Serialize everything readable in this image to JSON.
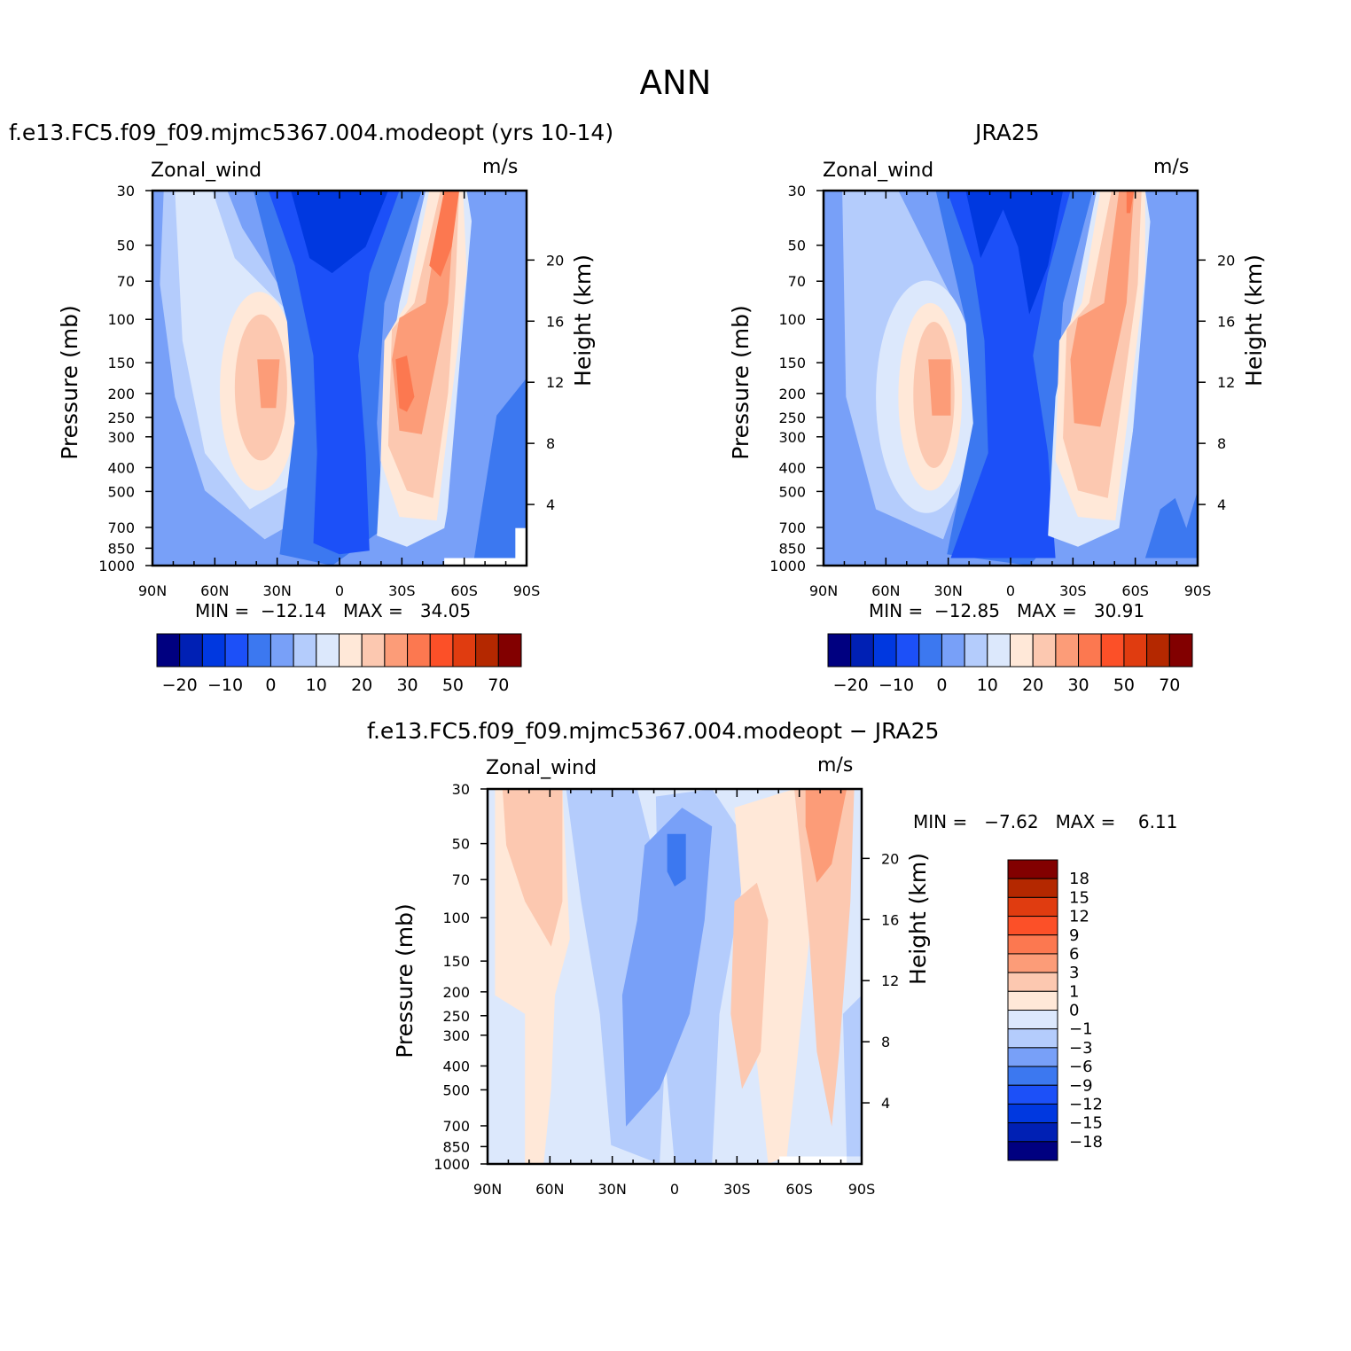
{
  "figure": {
    "title": "ANN"
  },
  "chart_data": [
    {
      "type": "heatmap",
      "id": "model",
      "title": "f.e13.FC5.f09_f09.mjmc5367.004.modeopt (yrs 10-14)",
      "variable": "Zonal_wind",
      "units": "m/s",
      "ylabel": "Pressure (mb)",
      "y2label": "Height (km)",
      "x_ticks": [
        "90N",
        "60N",
        "30N",
        "0",
        "30S",
        "60S",
        "90S"
      ],
      "x_values": [
        90,
        60,
        30,
        0,
        -30,
        -60,
        -90
      ],
      "y_ticks": [
        30,
        50,
        70,
        100,
        150,
        200,
        250,
        300,
        400,
        500,
        700,
        850,
        1000
      ],
      "y2_ticks": [
        20,
        16,
        12,
        8,
        4
      ],
      "ylim": [
        1000,
        30
      ],
      "log_y": true,
      "min_label": "MIN =  −12.14   MAX =   34.05",
      "min": -12.14,
      "max": 34.05,
      "colorbar": {
        "orientation": "horizontal",
        "labels": [
          "−20",
          "−10",
          "0",
          "10",
          "20",
          "30",
          "50",
          "70"
        ],
        "colors": [
          "#000080",
          "#0020b4",
          "#0038e0",
          "#1c50f8",
          "#3c78f0",
          "#78a0f8",
          "#b4ccfc",
          "#dce8fc",
          "#ffe8d8",
          "#fcc8b0",
          "#fc9c78",
          "#fc7850",
          "#fc5028",
          "#e03c10",
          "#b42800",
          "#820000"
        ]
      }
    },
    {
      "type": "heatmap",
      "id": "obs",
      "title": "JRA25",
      "variable": "Zonal_wind",
      "units": "m/s",
      "ylabel": "Pressure (mb)",
      "y2label": "Height (km)",
      "x_ticks": [
        "90N",
        "60N",
        "30N",
        "0",
        "30S",
        "60S",
        "90S"
      ],
      "x_values": [
        90,
        60,
        30,
        0,
        -30,
        -60,
        -90
      ],
      "y_ticks": [
        30,
        50,
        70,
        100,
        150,
        200,
        250,
        300,
        400,
        500,
        700,
        850,
        1000
      ],
      "y2_ticks": [
        20,
        16,
        12,
        8,
        4
      ],
      "ylim": [
        1000,
        30
      ],
      "log_y": true,
      "min_label": "MIN =  −12.85   MAX =   30.91",
      "min": -12.85,
      "max": 30.91,
      "colorbar": {
        "orientation": "horizontal",
        "labels": [
          "−20",
          "−10",
          "0",
          "10",
          "20",
          "30",
          "50",
          "70"
        ],
        "colors": [
          "#000080",
          "#0020b4",
          "#0038e0",
          "#1c50f8",
          "#3c78f0",
          "#78a0f8",
          "#b4ccfc",
          "#dce8fc",
          "#ffe8d8",
          "#fcc8b0",
          "#fc9c78",
          "#fc7850",
          "#fc5028",
          "#e03c10",
          "#b42800",
          "#820000"
        ]
      }
    },
    {
      "type": "heatmap",
      "id": "diff",
      "title": "f.e13.FC5.f09_f09.mjmc5367.004.modeopt − JRA25",
      "variable": "Zonal_wind",
      "units": "m/s",
      "ylabel": "Pressure (mb)",
      "y2label": "Height (km)",
      "x_ticks": [
        "90N",
        "60N",
        "30N",
        "0",
        "30S",
        "60S",
        "90S"
      ],
      "x_values": [
        90,
        60,
        30,
        0,
        -30,
        -60,
        -90
      ],
      "y_ticks": [
        30,
        50,
        70,
        100,
        150,
        200,
        250,
        300,
        400,
        500,
        700,
        850,
        1000
      ],
      "y2_ticks": [
        20,
        16,
        12,
        8,
        4
      ],
      "ylim": [
        1000,
        30
      ],
      "log_y": true,
      "min_label": "MIN =   −7.62   MAX =    6.11",
      "min": -7.62,
      "max": 6.11,
      "colorbar": {
        "orientation": "vertical",
        "labels": [
          "18",
          "15",
          "12",
          "9",
          "6",
          "3",
          "1",
          "0",
          "−1",
          "−3",
          "−6",
          "−9",
          "−12",
          "−15",
          "−18"
        ],
        "colors": [
          "#820000",
          "#b42800",
          "#e03c10",
          "#fc5028",
          "#fc7850",
          "#fc9c78",
          "#fcc8b0",
          "#ffe8d8",
          "#dce8fc",
          "#b4ccfc",
          "#78a0f8",
          "#3c78f0",
          "#1c50f8",
          "#0038e0",
          "#0020b4",
          "#000080"
        ]
      }
    }
  ]
}
